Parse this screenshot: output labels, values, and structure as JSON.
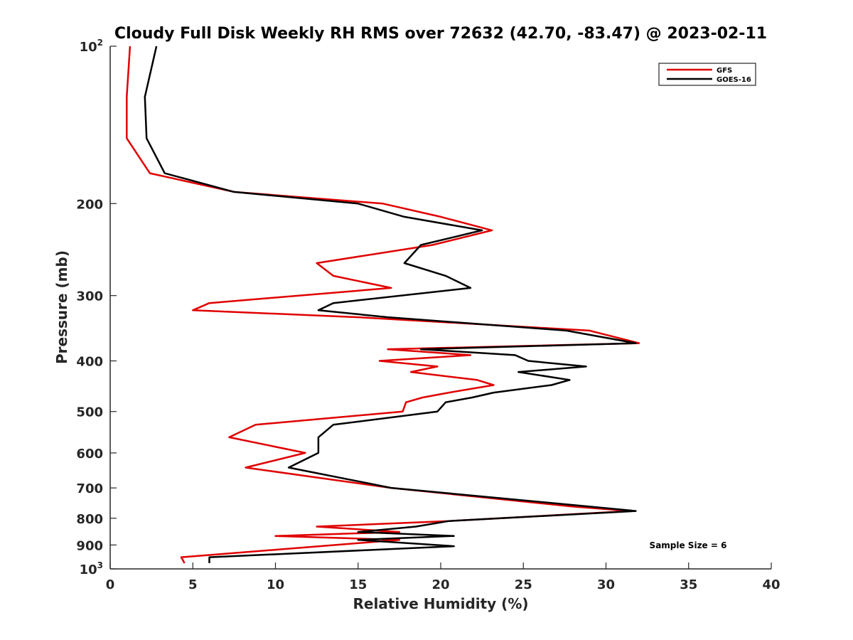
{
  "chart_data": {
    "type": "line",
    "title": "Cloudy Full Disk Weekly RH RMS over 72632 (42.70, -83.47) @ 2023-02-11",
    "xlabel": "Relative Humidity (%)",
    "ylabel": "Pressure (mb)",
    "xlim": [
      0,
      40
    ],
    "ylim": [
      100,
      1000
    ],
    "y_scale": "log",
    "y_reversed": true,
    "x_ticks": [
      0,
      5,
      10,
      15,
      20,
      25,
      30,
      35,
      40
    ],
    "x_tick_labels": [
      "0",
      "5",
      "10",
      "15",
      "20",
      "25",
      "30",
      "35",
      "40"
    ],
    "y_ticks": [
      {
        "value": 100,
        "base": "10",
        "exp": "2"
      },
      {
        "value": 200,
        "label": "200"
      },
      {
        "value": 300,
        "label": "300"
      },
      {
        "value": 400,
        "label": "400"
      },
      {
        "value": 500,
        "label": "500"
      },
      {
        "value": 600,
        "label": "600"
      },
      {
        "value": 700,
        "label": "700"
      },
      {
        "value": 800,
        "label": "800"
      },
      {
        "value": 900,
        "label": "900"
      },
      {
        "value": 1000,
        "base": "10",
        "exp": "3"
      }
    ],
    "grid": false,
    "legend_position": "top-right",
    "annotation": "Sample Size = 6",
    "series": [
      {
        "name": "GFS",
        "color": "#e00000",
        "points": [
          [
            1.2,
            100
          ],
          [
            1.0,
            125
          ],
          [
            1.0,
            150
          ],
          [
            2.4,
            175
          ],
          [
            7.5,
            190
          ],
          [
            16.5,
            200
          ],
          [
            20,
            212
          ],
          [
            23.1,
            225
          ],
          [
            19.5,
            240
          ],
          [
            12.5,
            260
          ],
          [
            13.5,
            275
          ],
          [
            17.0,
            290
          ],
          [
            6.0,
            310
          ],
          [
            5.0,
            320
          ],
          [
            15.0,
            330
          ],
          [
            29.0,
            350
          ],
          [
            32.0,
            370
          ],
          [
            16.8,
            380
          ],
          [
            21.8,
            390
          ],
          [
            16.3,
            400
          ],
          [
            19.8,
            410
          ],
          [
            18.2,
            420
          ],
          [
            22.2,
            435
          ],
          [
            23.2,
            445
          ],
          [
            20.5,
            460
          ],
          [
            18.9,
            470
          ],
          [
            17.9,
            480
          ],
          [
            17.7,
            500
          ],
          [
            8.8,
            530
          ],
          [
            7.2,
            560
          ],
          [
            11.8,
            600
          ],
          [
            8.2,
            640
          ],
          [
            17.0,
            700
          ],
          [
            28.0,
            760
          ],
          [
            31.5,
            775
          ],
          [
            20.5,
            810
          ],
          [
            12.5,
            830
          ],
          [
            17.5,
            850
          ],
          [
            10.0,
            865
          ],
          [
            17.5,
            880
          ],
          [
            4.3,
            950
          ],
          [
            4.5,
            975
          ]
        ]
      },
      {
        "name": "GOES-16",
        "color": "#000000",
        "points": [
          [
            2.8,
            100
          ],
          [
            2.1,
            125
          ],
          [
            2.2,
            150
          ],
          [
            3.3,
            175
          ],
          [
            7.5,
            190
          ],
          [
            15.0,
            200
          ],
          [
            17.8,
            212
          ],
          [
            22.5,
            225
          ],
          [
            18.8,
            240
          ],
          [
            17.8,
            260
          ],
          [
            20.3,
            275
          ],
          [
            21.8,
            290
          ],
          [
            13.5,
            310
          ],
          [
            12.6,
            320
          ],
          [
            16.8,
            330
          ],
          [
            27.6,
            350
          ],
          [
            31.8,
            370
          ],
          [
            18.8,
            380
          ],
          [
            24.5,
            390
          ],
          [
            25.3,
            400
          ],
          [
            28.8,
            410
          ],
          [
            24.7,
            420
          ],
          [
            27.8,
            435
          ],
          [
            26.7,
            445
          ],
          [
            23.2,
            460
          ],
          [
            21.9,
            470
          ],
          [
            20.3,
            480
          ],
          [
            19.8,
            500
          ],
          [
            13.5,
            530
          ],
          [
            12.6,
            560
          ],
          [
            12.6,
            600
          ],
          [
            10.8,
            640
          ],
          [
            17.0,
            700
          ],
          [
            29.0,
            760
          ],
          [
            31.8,
            775
          ],
          [
            20.5,
            810
          ],
          [
            18.5,
            830
          ],
          [
            15.0,
            850
          ],
          [
            20.8,
            865
          ],
          [
            15.0,
            880
          ],
          [
            20.8,
            905
          ],
          [
            6.0,
            950
          ],
          [
            6.0,
            975
          ]
        ]
      }
    ]
  }
}
